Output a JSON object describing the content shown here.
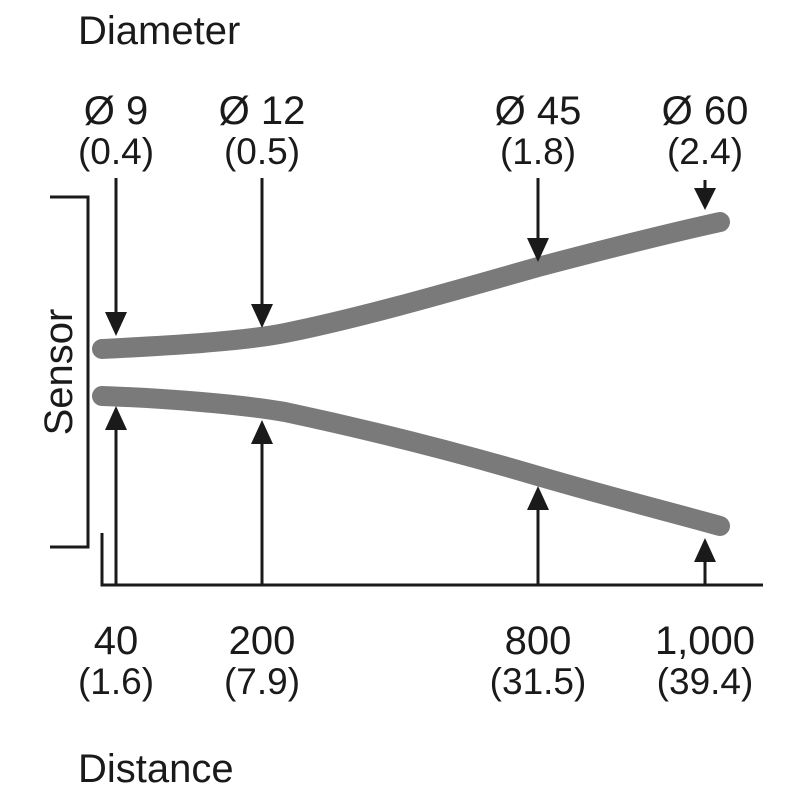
{
  "labels": {
    "diameter_title": "Diameter",
    "distance_title": "Distance",
    "sensor": "Sensor"
  },
  "diameters": [
    {
      "mm": "Ø 9",
      "in": "(0.4)"
    },
    {
      "mm": "Ø 12",
      "in": "(0.5)"
    },
    {
      "mm": "Ø 45",
      "in": "(1.8)"
    },
    {
      "mm": "Ø 60",
      "in": "(2.4)"
    }
  ],
  "distances": [
    {
      "mm": "40",
      "in": "(1.6)"
    },
    {
      "mm": "200",
      "in": "(7.9)"
    },
    {
      "mm": "800",
      "in": "(31.5)"
    },
    {
      "mm": "1,000",
      "in": "(39.4)"
    }
  ],
  "colors": {
    "beam": "#7a7a7a",
    "ink": "#1a1a1a"
  }
}
